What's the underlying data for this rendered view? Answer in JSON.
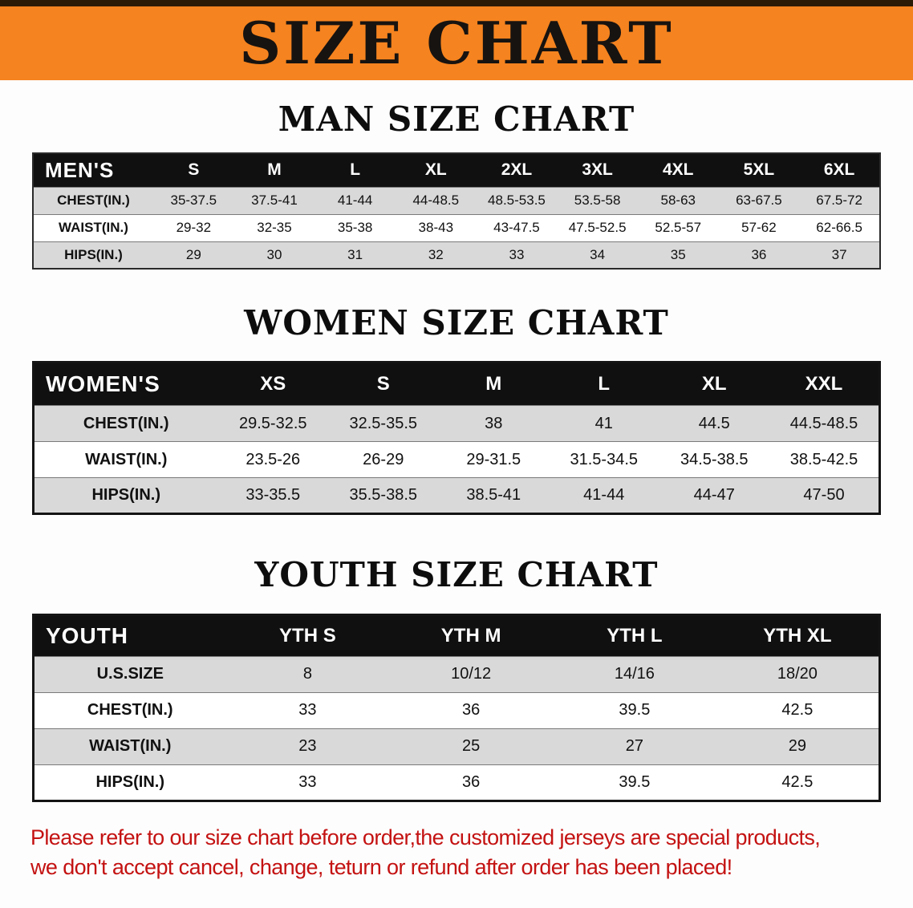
{
  "banner": {
    "title": "SIZE CHART"
  },
  "men": {
    "heading": "MAN SIZE CHART",
    "table": {
      "header_label": "MEN'S",
      "columns": [
        "S",
        "M",
        "L",
        "XL",
        "2XL",
        "3XL",
        "4XL",
        "5XL",
        "6XL"
      ],
      "rows": [
        {
          "label": "CHEST(IN.)",
          "values": [
            "35-37.5",
            "37.5-41",
            "41-44",
            "44-48.5",
            "48.5-53.5",
            "53.5-58",
            "58-63",
            "63-67.5",
            "67.5-72"
          ]
        },
        {
          "label": "WAIST(IN.)",
          "values": [
            "29-32",
            "32-35",
            "35-38",
            "38-43",
            "43-47.5",
            "47.5-52.5",
            "52.5-57",
            "57-62",
            "62-66.5"
          ]
        },
        {
          "label": "HIPS(IN.)",
          "values": [
            "29",
            "30",
            "31",
            "32",
            "33",
            "34",
            "35",
            "36",
            "37"
          ]
        }
      ]
    }
  },
  "women": {
    "heading": "WOMEN SIZE CHART",
    "table": {
      "header_label": "WOMEN'S",
      "columns": [
        "XS",
        "S",
        "M",
        "L",
        "XL",
        "XXL"
      ],
      "rows": [
        {
          "label": "CHEST(IN.)",
          "values": [
            "29.5-32.5",
            "32.5-35.5",
            "38",
            "41",
            "44.5",
            "44.5-48.5"
          ]
        },
        {
          "label": "WAIST(IN.)",
          "values": [
            "23.5-26",
            "26-29",
            "29-31.5",
            "31.5-34.5",
            "34.5-38.5",
            "38.5-42.5"
          ]
        },
        {
          "label": "HIPS(IN.)",
          "values": [
            "33-35.5",
            "35.5-38.5",
            "38.5-41",
            "41-44",
            "44-47",
            "47-50"
          ]
        }
      ]
    }
  },
  "youth": {
    "heading": "YOUTH SIZE CHART",
    "table": {
      "header_label": "YOUTH",
      "columns": [
        "YTH S",
        "YTH M",
        "YTH L",
        "YTH XL"
      ],
      "rows": [
        {
          "label": "U.S.SIZE",
          "values": [
            "8",
            "10/12",
            "14/16",
            "18/20"
          ]
        },
        {
          "label": "CHEST(IN.)",
          "values": [
            "33",
            "36",
            "39.5",
            "42.5"
          ]
        },
        {
          "label": "WAIST(IN.)",
          "values": [
            "23",
            "25",
            "27",
            "29"
          ]
        },
        {
          "label": "HIPS(IN.)",
          "values": [
            "33",
            "36",
            "39.5",
            "42.5"
          ]
        }
      ]
    }
  },
  "footer": {
    "line1": "Please refer to our size chart before order,the customized jerseys are special products,",
    "line2": "we don't accept cancel, change, teturn or refund after order has been placed!"
  },
  "colors": {
    "banner_bg": "#f5831f",
    "banner_text": "#171310",
    "table_header_bg": "#101010",
    "row_alt_bg": "#d9d9d9",
    "notice_red": "#c41212"
  }
}
